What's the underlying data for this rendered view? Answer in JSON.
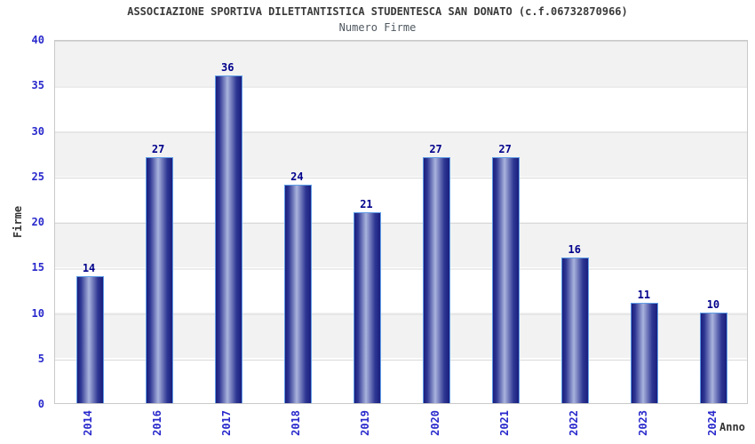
{
  "header": {
    "title": "ASSOCIAZIONE SPORTIVA DILETTANTISTICA STUDENTESCA SAN DONATO (c.f.06732870966)",
    "subtitle": "Numero Firme"
  },
  "chart_data": {
    "type": "bar",
    "title": "Numero Firme",
    "categories": [
      "2014",
      "2016",
      "2017",
      "2018",
      "2019",
      "2020",
      "2021",
      "2022",
      "2023",
      "2024"
    ],
    "values": [
      14,
      27,
      36,
      24,
      21,
      27,
      27,
      16,
      11,
      10
    ],
    "xlabel": "Anno",
    "ylabel": "Firme",
    "ylim": [
      0,
      40
    ],
    "yticks": [
      0,
      5,
      10,
      15,
      20,
      25,
      30,
      35,
      40
    ],
    "bar_value_labels": true,
    "legend_position": "none",
    "grid": "alternating horizontal bands every 5 units",
    "x_tick_rotation_degrees": 90
  },
  "colors": {
    "background": "#ffffff",
    "band_gray": "#f2f2f2",
    "band_white": "#ffffff",
    "grid_line": "#d9d9d9",
    "plot_border": "#c9c9c9",
    "bar_edge": "#5f9de6",
    "bar_dark": "#1a1e7d",
    "bar_mid": "#2e3793",
    "bar_light": "#aab3dd",
    "tick_label": "#2929cc",
    "value_label": "#00008c",
    "title_text": "#3a3a3a",
    "subtitle_text": "#4f5860",
    "axis_title_text": "#333333"
  }
}
